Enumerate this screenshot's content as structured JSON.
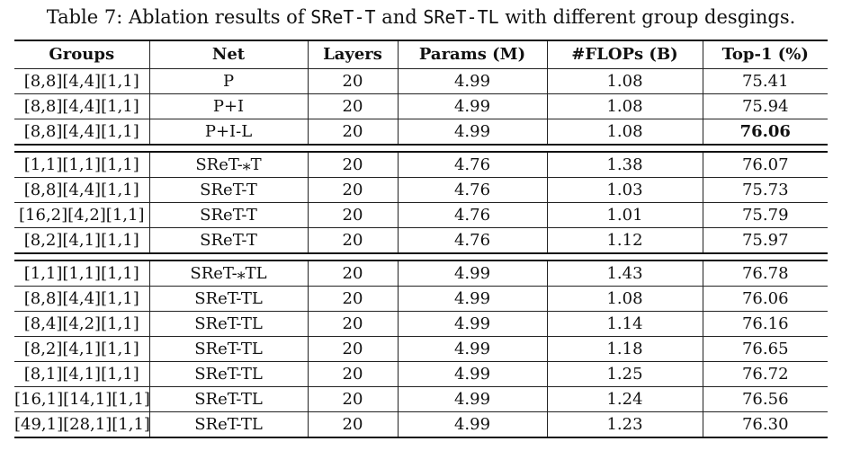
{
  "caption": {
    "prefix": "Table 7: Ablation results of ",
    "model_a": "SReT-T",
    "middle": " and ",
    "model_b": "SReT-TL",
    "suffix": " with different group desgings."
  },
  "table": {
    "headers": [
      "Groups",
      "Net",
      "Layers",
      "Params (M)",
      "#FLOPs (B)",
      "Top-1 (%)"
    ],
    "groups": [
      {
        "rows": [
          [
            "[8,8][4,4][1,1]",
            "P",
            "20",
            "4.99",
            "1.08",
            "75.41"
          ],
          [
            "[8,8][4,4][1,1]",
            "P+I",
            "20",
            "4.99",
            "1.08",
            "75.94"
          ],
          [
            "[8,8][4,4][1,1]",
            "P+I-L",
            "20",
            "4.99",
            "1.08",
            "76.06"
          ]
        ]
      },
      {
        "rows": [
          [
            "[1,1][1,1][1,1]",
            "SReT-⁎T",
            "20",
            "4.76",
            "1.38",
            "76.07"
          ],
          [
            "[8,8][4,4][1,1]",
            "SReT-T",
            "20",
            "4.76",
            "1.03",
            "75.73"
          ],
          [
            "[16,2][4,2][1,1]",
            "SReT-T",
            "20",
            "4.76",
            "1.01",
            "75.79"
          ],
          [
            "[8,2][4,1][1,1]",
            "SReT-T",
            "20",
            "4.76",
            "1.12",
            "75.97"
          ]
        ]
      },
      {
        "rows": [
          [
            "[1,1][1,1][1,1]",
            "SReT-⁎TL",
            "20",
            "4.99",
            "1.43",
            "76.78"
          ],
          [
            "[8,8][4,4][1,1]",
            "SReT-TL",
            "20",
            "4.99",
            "1.08",
            "76.06"
          ],
          [
            "[8,4][4,2][1,1]",
            "SReT-TL",
            "20",
            "4.99",
            "1.14",
            "76.16"
          ],
          [
            "[8,2][4,1][1,1]",
            "SReT-TL",
            "20",
            "4.99",
            "1.18",
            "76.65"
          ],
          [
            "[8,1][4,1][1,1]",
            "SReT-TL",
            "20",
            "4.99",
            "1.25",
            "76.72"
          ],
          [
            "[16,1][14,1][1,1]",
            "SReT-TL",
            "20",
            "4.99",
            "1.24",
            "76.56"
          ],
          [
            "[49,1][28,1][1,1]",
            "SReT-TL",
            "20",
            "4.99",
            "1.23",
            "76.30"
          ]
        ]
      }
    ],
    "bold_cells": [
      {
        "group": 0,
        "row": 2,
        "col": 5
      }
    ]
  }
}
